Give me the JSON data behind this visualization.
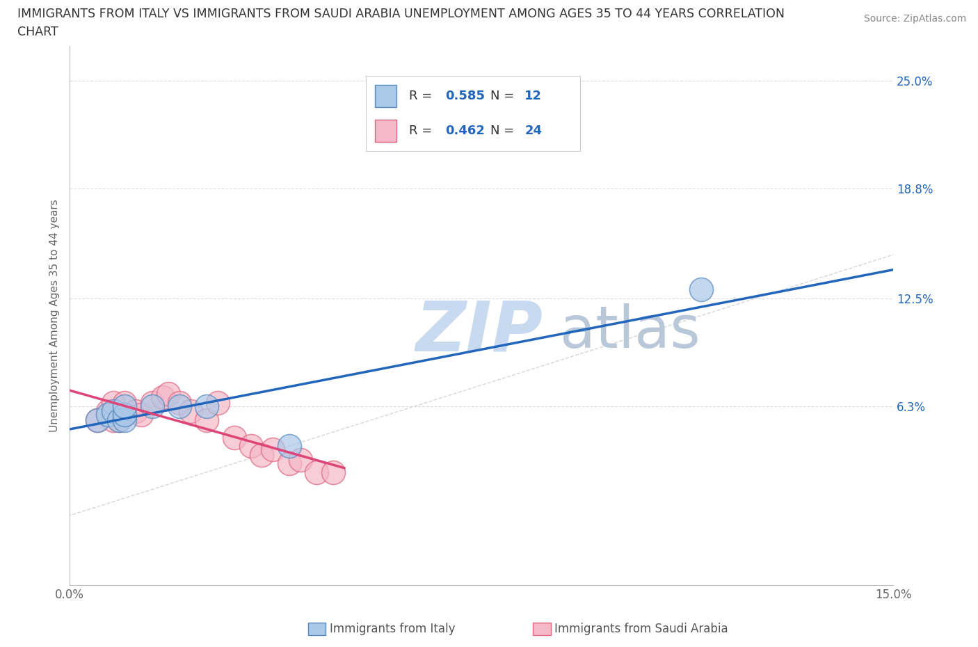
{
  "title_line1": "IMMIGRANTS FROM ITALY VS IMMIGRANTS FROM SAUDI ARABIA UNEMPLOYMENT AMONG AGES 35 TO 44 YEARS CORRELATION",
  "title_line2": "CHART",
  "source_text": "Source: ZipAtlas.com",
  "ylabel": "Unemployment Among Ages 35 to 44 years",
  "xlim": [
    0.0,
    0.15
  ],
  "ylim": [
    -0.04,
    0.27
  ],
  "italy_x": [
    0.005,
    0.007,
    0.008,
    0.009,
    0.01,
    0.01,
    0.01,
    0.015,
    0.02,
    0.025,
    0.04,
    0.115
  ],
  "italy_y": [
    0.055,
    0.058,
    0.06,
    0.055,
    0.055,
    0.058,
    0.063,
    0.063,
    0.063,
    0.063,
    0.04,
    0.13
  ],
  "saudi_x": [
    0.005,
    0.007,
    0.008,
    0.008,
    0.009,
    0.01,
    0.01,
    0.012,
    0.013,
    0.015,
    0.017,
    0.018,
    0.02,
    0.022,
    0.025,
    0.027,
    0.03,
    0.033,
    0.035,
    0.037,
    0.04,
    0.042,
    0.045,
    0.048
  ],
  "saudi_y": [
    0.055,
    0.06,
    0.055,
    0.065,
    0.055,
    0.058,
    0.065,
    0.06,
    0.058,
    0.065,
    0.068,
    0.07,
    0.065,
    0.06,
    0.055,
    0.065,
    0.045,
    0.04,
    0.035,
    0.038,
    0.03,
    0.032,
    0.025,
    0.025
  ],
  "italy_color": "#aac8e8",
  "italy_edge_color": "#5588bb",
  "saudi_color": "#f5b8c8",
  "saudi_edge_color": "#dd6680",
  "italy_R": "0.585",
  "italy_N": "12",
  "saudi_R": "0.462",
  "saudi_N": "24",
  "regression_italy_color": "#2266bb",
  "regression_saudi_color": "#dd4477",
  "watermark_zip": "ZIP",
  "watermark_atlas": "atlas",
  "watermark_color_zip": "#c8daf0",
  "watermark_color_atlas": "#b8c8d8",
  "legend_italy": "Immigrants from Italy",
  "legend_saudi": "Immigrants from Saudi Arabia",
  "background_color": "#ffffff",
  "grid_color": "#dddddd",
  "ytick_positions": [
    0.063,
    0.125,
    0.188,
    0.25
  ],
  "ytick_labels": [
    "6.3%",
    "12.5%",
    "18.8%",
    "25.0%"
  ],
  "xtick_positions": [
    0.0,
    0.05,
    0.1,
    0.15
  ],
  "xtick_labels": [
    "0.0%",
    "",
    "",
    "15.0%"
  ]
}
